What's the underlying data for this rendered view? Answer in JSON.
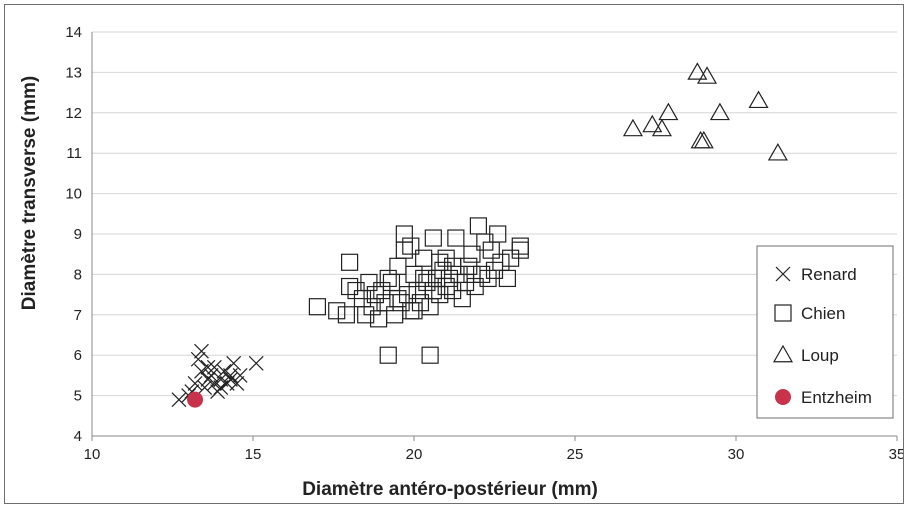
{
  "chart_data": {
    "type": "scatter",
    "xlabel": "Diamètre antéro-postérieur (mm)",
    "ylabel": "Diamètre transverse (mm)",
    "xlim": [
      10,
      35
    ],
    "ylim": [
      4,
      14
    ],
    "xticks": [
      "10",
      "15",
      "20",
      "25",
      "30",
      "35"
    ],
    "yticks": [
      "4",
      "5",
      "6",
      "7",
      "8",
      "9",
      "10",
      "11",
      "12",
      "13",
      "14"
    ],
    "grid": "horizontal",
    "legend_position": "right",
    "series": [
      {
        "name": "Renard",
        "marker": "x",
        "color": "#222222",
        "points": [
          [
            12.7,
            4.9
          ],
          [
            13.0,
            5.0
          ],
          [
            13.2,
            5.3
          ],
          [
            13.4,
            5.6
          ],
          [
            13.4,
            6.1
          ],
          [
            13.5,
            5.2
          ],
          [
            13.6,
            5.4
          ],
          [
            13.7,
            5.5
          ],
          [
            13.8,
            5.3
          ],
          [
            13.9,
            5.1
          ],
          [
            14.0,
            5.4
          ],
          [
            14.1,
            5.6
          ],
          [
            14.2,
            5.3
          ],
          [
            14.3,
            5.5
          ],
          [
            14.4,
            5.8
          ],
          [
            14.5,
            5.3
          ],
          [
            14.6,
            5.5
          ],
          [
            13.3,
            5.9
          ],
          [
            13.6,
            5.7
          ],
          [
            14.0,
            5.2
          ],
          [
            15.1,
            5.8
          ],
          [
            13.1,
            5.1
          ],
          [
            13.8,
            5.7
          ],
          [
            14.3,
            5.4
          ]
        ]
      },
      {
        "name": "Chien",
        "marker": "square",
        "color": "#222222",
        "points": [
          [
            17.0,
            7.2
          ],
          [
            17.6,
            7.1
          ],
          [
            17.9,
            7.0
          ],
          [
            18.0,
            8.3
          ],
          [
            18.0,
            7.7
          ],
          [
            18.2,
            7.6
          ],
          [
            18.4,
            7.4
          ],
          [
            18.5,
            7.0
          ],
          [
            18.7,
            7.2
          ],
          [
            18.8,
            7.5
          ],
          [
            18.9,
            6.9
          ],
          [
            19.0,
            7.6
          ],
          [
            19.1,
            7.3
          ],
          [
            19.2,
            6.0
          ],
          [
            19.3,
            7.8
          ],
          [
            19.4,
            7.0
          ],
          [
            19.5,
            8.2
          ],
          [
            19.6,
            7.3
          ],
          [
            19.7,
            9.0
          ],
          [
            19.7,
            8.6
          ],
          [
            19.8,
            7.5
          ],
          [
            19.9,
            7.1
          ],
          [
            20.0,
            8.0
          ],
          [
            20.1,
            7.6
          ],
          [
            20.2,
            7.3
          ],
          [
            20.3,
            8.4
          ],
          [
            20.4,
            7.8
          ],
          [
            20.5,
            7.2
          ],
          [
            20.5,
            6.0
          ],
          [
            20.6,
            8.9
          ],
          [
            20.7,
            7.9
          ],
          [
            20.8,
            7.5
          ],
          [
            20.9,
            8.1
          ],
          [
            21.0,
            7.7
          ],
          [
            21.1,
            7.9
          ],
          [
            21.2,
            7.6
          ],
          [
            21.3,
            8.9
          ],
          [
            21.4,
            8.0
          ],
          [
            21.5,
            7.4
          ],
          [
            21.6,
            7.8
          ],
          [
            21.7,
            8.2
          ],
          [
            21.8,
            8.5
          ],
          [
            21.9,
            7.7
          ],
          [
            22.0,
            9.2
          ],
          [
            22.1,
            8.0
          ],
          [
            22.2,
            8.8
          ],
          [
            22.3,
            7.9
          ],
          [
            22.4,
            8.6
          ],
          [
            22.5,
            8.1
          ],
          [
            22.6,
            9.0
          ],
          [
            22.7,
            8.3
          ],
          [
            22.9,
            7.9
          ],
          [
            23.0,
            8.4
          ],
          [
            23.3,
            8.6
          ],
          [
            23.3,
            8.7
          ],
          [
            19.2,
            7.9
          ],
          [
            19.9,
            8.7
          ],
          [
            20.3,
            7.9
          ],
          [
            20.8,
            8.3
          ],
          [
            21.2,
            8.2
          ],
          [
            18.6,
            7.8
          ],
          [
            19.5,
            7.4
          ],
          [
            20.0,
            7.1
          ],
          [
            20.6,
            7.6
          ],
          [
            21.0,
            8.4
          ],
          [
            21.8,
            8.0
          ]
        ]
      },
      {
        "name": "Loup",
        "marker": "triangle",
        "color": "#222222",
        "points": [
          [
            26.8,
            11.6
          ],
          [
            27.4,
            11.7
          ],
          [
            27.7,
            11.6
          ],
          [
            27.9,
            12.0
          ],
          [
            28.8,
            13.0
          ],
          [
            28.9,
            11.3
          ],
          [
            29.0,
            11.3
          ],
          [
            29.1,
            12.9
          ],
          [
            29.5,
            12.0
          ],
          [
            30.7,
            12.3
          ],
          [
            31.3,
            11.0
          ]
        ]
      },
      {
        "name": "Entzheim",
        "marker": "circle",
        "color": "#c8324a",
        "points": [
          [
            13.2,
            4.9
          ]
        ]
      }
    ]
  }
}
